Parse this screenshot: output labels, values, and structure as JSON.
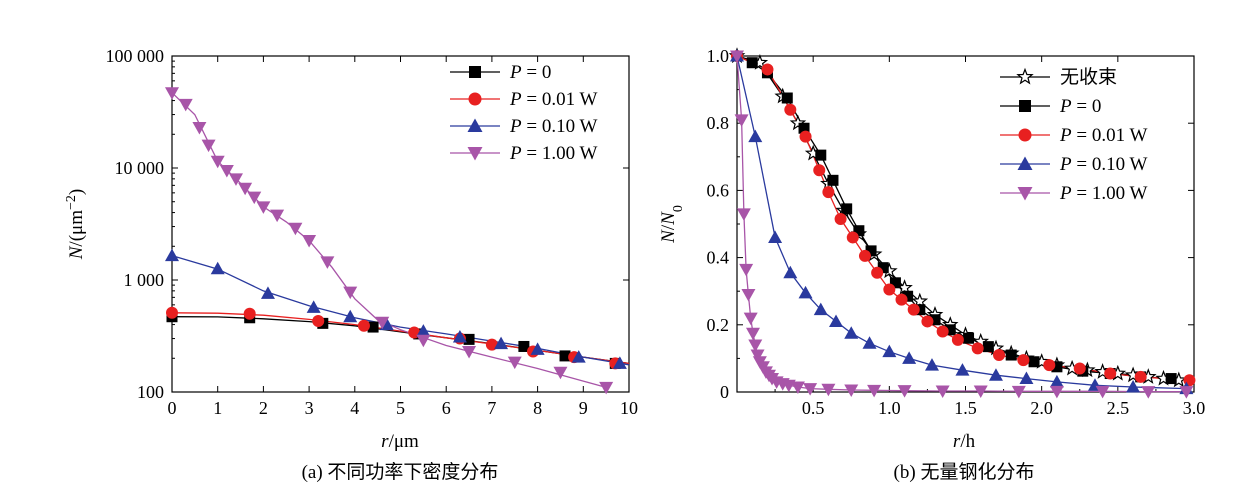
{
  "chart_data": [
    {
      "type": "line",
      "title": "",
      "caption": "(a) 不同功率下密度分布",
      "xlabel": "r/μm",
      "ylabel": "N/(μm⁻²)",
      "xlim": [
        0,
        10
      ],
      "ylim": [
        100,
        100000
      ],
      "yscale": "log",
      "grid": false,
      "legend_position": "top-right",
      "x_ticks": [
        "0",
        "1",
        "2",
        "3",
        "4",
        "5",
        "6",
        "7",
        "8",
        "9",
        "10"
      ],
      "y_ticks": [
        "100",
        "1 000",
        "10 000",
        "100 000"
      ],
      "series": [
        {
          "name": "P = 0",
          "color": "#000000",
          "marker": "square",
          "x": [
            0,
            1.7,
            3.3,
            4.4,
            5.4,
            6.5,
            7.7,
            8.6,
            9.7
          ],
          "y": [
            470,
            460,
            410,
            380,
            330,
            295,
            255,
            210,
            180
          ],
          "curve_x": [
            0,
            1,
            2,
            3,
            4,
            5,
            6,
            7,
            8,
            9,
            10
          ],
          "curve_y": [
            470,
            468,
            450,
            425,
            390,
            345,
            305,
            270,
            235,
            205,
            180
          ]
        },
        {
          "name": "P = 0.01 W",
          "color": "#e82020",
          "marker": "circle",
          "x": [
            0,
            1.7,
            3.2,
            4.2,
            5.3,
            6.3,
            7.0,
            7.9,
            8.8,
            9.7
          ],
          "y": [
            510,
            500,
            430,
            390,
            340,
            300,
            265,
            230,
            205,
            180
          ],
          "curve_x": [
            0,
            1,
            2,
            3,
            4,
            5,
            6,
            7,
            8,
            9,
            10
          ],
          "curve_y": [
            510,
            505,
            485,
            445,
            400,
            350,
            305,
            268,
            235,
            205,
            180
          ]
        },
        {
          "name": "P = 0.10 W",
          "color": "#2a3a9e",
          "marker": "triangle-up",
          "x": [
            0,
            1,
            2.1,
            3.1,
            3.9,
            4.7,
            5.5,
            6.3,
            7.2,
            8.0,
            8.9,
            9.8
          ],
          "y": [
            1650,
            1260,
            760,
            570,
            470,
            400,
            350,
            310,
            270,
            240,
            205,
            180
          ],
          "curve_x": [
            0,
            1,
            2,
            3,
            4,
            5,
            6,
            7,
            8,
            9,
            10
          ],
          "curve_y": [
            1650,
            1250,
            800,
            590,
            460,
            380,
            330,
            285,
            245,
            205,
            175
          ]
        },
        {
          "name": "P = 1.00 W",
          "color": "#a855a8",
          "marker": "triangle-down",
          "x": [
            0,
            0.3,
            0.6,
            0.8,
            1.0,
            1.2,
            1.4,
            1.6,
            1.8,
            2.0,
            2.3,
            2.7,
            3.0,
            3.4,
            3.9,
            4.6,
            5.5,
            6.5,
            7.5,
            8.5,
            9.5
          ],
          "y": [
            47000,
            37000,
            23000,
            16000,
            11500,
            9500,
            8000,
            6600,
            5500,
            4500,
            3800,
            2900,
            2250,
            1450,
            780,
            420,
            290,
            230,
            185,
            150,
            110
          ],
          "curve_x": [
            0,
            0.5,
            1,
            1.5,
            2,
            2.5,
            3,
            3.5,
            4,
            4.5,
            5,
            6,
            7,
            8,
            9,
            9.5
          ],
          "curve_y": [
            47000,
            30000,
            11500,
            7300,
            4500,
            3300,
            2250,
            1300,
            680,
            440,
            360,
            260,
            205,
            162,
            125,
            110
          ]
        }
      ]
    },
    {
      "type": "line",
      "title": "",
      "caption": "(b) 无量钢化分布",
      "xlabel": "r/h",
      "ylabel": "N/N0",
      "xlim": [
        0,
        3.0
      ],
      "ylim": [
        0,
        1.0
      ],
      "yscale": "linear",
      "grid": false,
      "legend_position": "top-right",
      "x_ticks": [
        "0.5",
        "1.0",
        "1.5",
        "2.0",
        "2.5",
        "3.0"
      ],
      "y_ticks": [
        "0",
        "0.2",
        "0.4",
        "0.6",
        "0.8",
        "1.0"
      ],
      "series": [
        {
          "name": "无收束",
          "color": "#000000",
          "marker": "star-open",
          "x": [
            0.0,
            0.15,
            0.3,
            0.4,
            0.5,
            0.6,
            0.7,
            0.8,
            0.9,
            1.0,
            1.1,
            1.2,
            1.3,
            1.4,
            1.5,
            1.6,
            1.7,
            1.8,
            1.9,
            2.0,
            2.1,
            2.2,
            2.3,
            2.4,
            2.5,
            2.6,
            2.7,
            2.8,
            2.9
          ],
          "y": [
            1.0,
            0.98,
            0.88,
            0.8,
            0.71,
            0.62,
            0.54,
            0.47,
            0.41,
            0.36,
            0.31,
            0.27,
            0.23,
            0.2,
            0.17,
            0.15,
            0.13,
            0.115,
            0.1,
            0.09,
            0.08,
            0.07,
            0.065,
            0.06,
            0.055,
            0.05,
            0.045,
            0.04,
            0.035
          ]
        },
        {
          "name": "P = 0",
          "color": "#000000",
          "marker": "square",
          "x": [
            0.0,
            0.1,
            0.2,
            0.33,
            0.44,
            0.55,
            0.63,
            0.72,
            0.8,
            0.88,
            0.96,
            1.04,
            1.12,
            1.2,
            1.3,
            1.4,
            1.52,
            1.65,
            1.8,
            1.95,
            2.1,
            2.27,
            2.45,
            2.65,
            2.85
          ],
          "y": [
            1.0,
            0.98,
            0.95,
            0.875,
            0.785,
            0.705,
            0.63,
            0.545,
            0.48,
            0.42,
            0.37,
            0.325,
            0.285,
            0.245,
            0.215,
            0.185,
            0.16,
            0.135,
            0.11,
            0.09,
            0.075,
            0.062,
            0.055,
            0.045,
            0.04
          ]
        },
        {
          "name": "P = 0.01 W",
          "color": "#e82020",
          "marker": "circle",
          "x": [
            0.0,
            0.2,
            0.35,
            0.45,
            0.54,
            0.6,
            0.68,
            0.76,
            0.84,
            0.92,
            1.0,
            1.08,
            1.16,
            1.25,
            1.35,
            1.45,
            1.58,
            1.72,
            1.88,
            2.05,
            2.25,
            2.45,
            2.65,
            2.97
          ],
          "y": [
            1.0,
            0.96,
            0.84,
            0.76,
            0.66,
            0.595,
            0.515,
            0.46,
            0.405,
            0.355,
            0.305,
            0.275,
            0.245,
            0.21,
            0.18,
            0.155,
            0.13,
            0.11,
            0.095,
            0.08,
            0.07,
            0.055,
            0.045,
            0.035
          ]
        },
        {
          "name": "P = 0.10 W",
          "color": "#2a3a9e",
          "marker": "triangle-up",
          "x": [
            0.0,
            0.12,
            0.25,
            0.35,
            0.45,
            0.55,
            0.65,
            0.75,
            0.87,
            1.0,
            1.13,
            1.28,
            1.48,
            1.7,
            1.9,
            2.1,
            2.35,
            2.6,
            2.95
          ],
          "y": [
            1.0,
            0.76,
            0.46,
            0.355,
            0.295,
            0.245,
            0.21,
            0.175,
            0.145,
            0.12,
            0.1,
            0.08,
            0.065,
            0.05,
            0.04,
            0.03,
            0.02,
            0.015,
            0.01
          ]
        },
        {
          "name": "P = 1.00 W",
          "color": "#a855a8",
          "marker": "triangle-down",
          "x": [
            0.0,
            0.03,
            0.045,
            0.06,
            0.075,
            0.09,
            0.105,
            0.12,
            0.135,
            0.15,
            0.17,
            0.19,
            0.21,
            0.23,
            0.26,
            0.3,
            0.34,
            0.4,
            0.48,
            0.6,
            0.75,
            0.9,
            1.1,
            1.35,
            1.6,
            1.85,
            2.1,
            2.4,
            2.7,
            2.95
          ],
          "y": [
            1.0,
            0.81,
            0.53,
            0.365,
            0.29,
            0.22,
            0.175,
            0.14,
            0.11,
            0.09,
            0.075,
            0.06,
            0.05,
            0.04,
            0.03,
            0.025,
            0.02,
            0.015,
            0.01,
            0.008,
            0.006,
            0.005,
            0.004,
            0.003,
            0.003,
            0.002,
            0.002,
            0.002,
            0.001,
            0.001
          ]
        }
      ]
    }
  ]
}
